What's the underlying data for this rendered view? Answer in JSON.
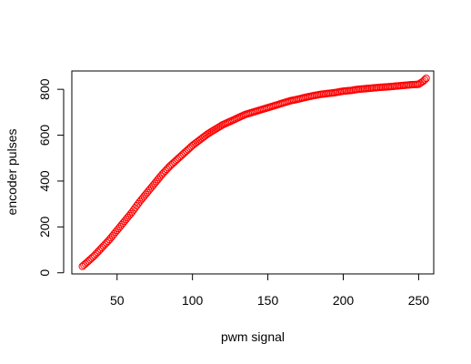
{
  "chart_data": {
    "type": "scatter",
    "title": "",
    "xlabel": "pwm signal",
    "ylabel": "encoder pulses",
    "xlim": [
      20,
      260
    ],
    "ylim": [
      -5,
      880
    ],
    "x_ticks": [
      50,
      100,
      150,
      200,
      250
    ],
    "y_ticks": [
      0,
      200,
      400,
      600,
      800
    ],
    "grid": false,
    "marker": "open-circle",
    "series": [
      {
        "color": "#ff0000",
        "x_start": 27,
        "x_end": 255,
        "x_step": 1,
        "anchors": [
          [
            27,
            28
          ],
          [
            30,
            45
          ],
          [
            35,
            75
          ],
          [
            40,
            110
          ],
          [
            45,
            145
          ],
          [
            50,
            185
          ],
          [
            55,
            225
          ],
          [
            60,
            265
          ],
          [
            65,
            310
          ],
          [
            70,
            350
          ],
          [
            75,
            390
          ],
          [
            80,
            430
          ],
          [
            85,
            465
          ],
          [
            90,
            495
          ],
          [
            95,
            525
          ],
          [
            100,
            555
          ],
          [
            105,
            580
          ],
          [
            110,
            605
          ],
          [
            115,
            625
          ],
          [
            120,
            645
          ],
          [
            125,
            660
          ],
          [
            130,
            675
          ],
          [
            135,
            690
          ],
          [
            140,
            700
          ],
          [
            145,
            710
          ],
          [
            150,
            720
          ],
          [
            155,
            730
          ],
          [
            160,
            740
          ],
          [
            165,
            750
          ],
          [
            170,
            757
          ],
          [
            175,
            765
          ],
          [
            180,
            772
          ],
          [
            185,
            778
          ],
          [
            190,
            782
          ],
          [
            195,
            786
          ],
          [
            200,
            792
          ],
          [
            205,
            795
          ],
          [
            210,
            800
          ],
          [
            215,
            803
          ],
          [
            220,
            806
          ],
          [
            225,
            809
          ],
          [
            230,
            811
          ],
          [
            235,
            814
          ],
          [
            240,
            817
          ],
          [
            245,
            820
          ],
          [
            250,
            822
          ],
          [
            253,
            835
          ],
          [
            255,
            848
          ]
        ]
      }
    ]
  }
}
